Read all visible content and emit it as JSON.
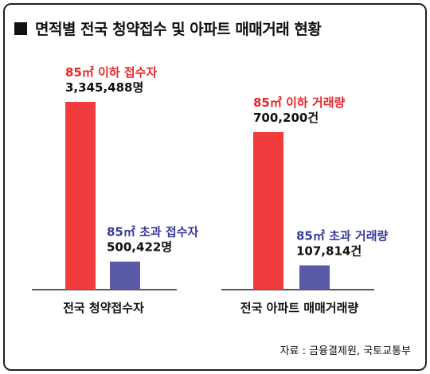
{
  "title": "면적별 전국 청약접수 및 아파트 매매거래 현황",
  "source": "자료 : 금융결제원,  국토교통부",
  "colors": {
    "le85": "#f03c3c",
    "gt85": "#5a5aa8",
    "le85_label": "#e8262a",
    "gt85_label": "#3a3a9a"
  },
  "chart_data": [
    {
      "type": "bar",
      "category": "전국 청약접수자",
      "series": [
        {
          "name": "85㎡ 이하 접수자",
          "value": 3345488,
          "value_label": "3,345,488명"
        },
        {
          "name": "85㎡ 초과 접수자",
          "value": 500422,
          "value_label": "500,422명"
        }
      ]
    },
    {
      "type": "bar",
      "category": "전국 아파트 매매거래량",
      "series": [
        {
          "name": "85㎡ 이하 거래량",
          "value": 700200,
          "value_label": "700,200건"
        },
        {
          "name": "85㎡ 초과 거래량",
          "value": 107814,
          "value_label": "107,814건"
        }
      ]
    }
  ]
}
